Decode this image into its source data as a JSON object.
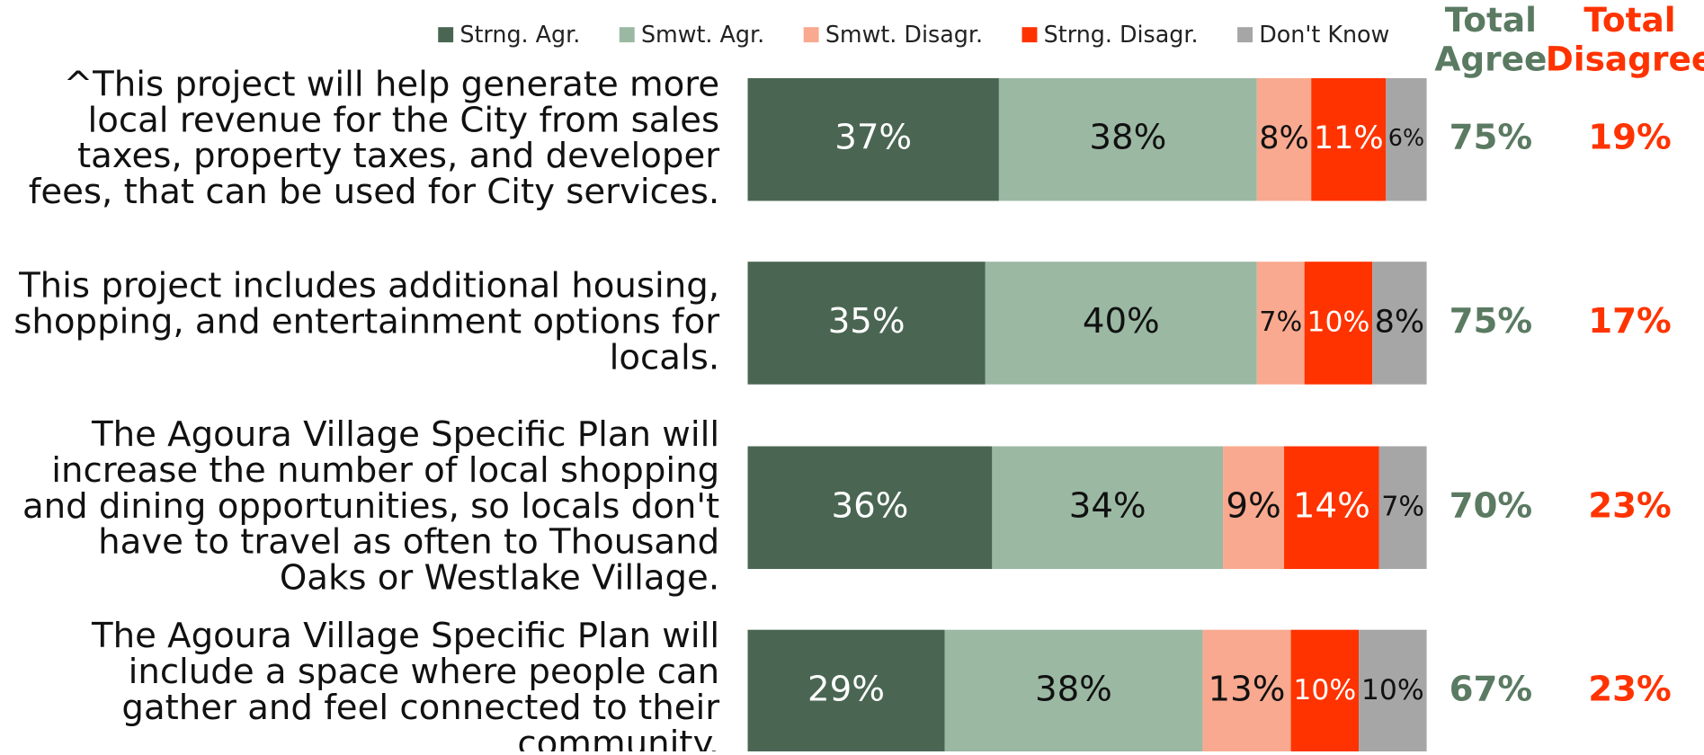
{
  "chart_data": {
    "type": "stacked_barh",
    "categories": [
      "^This project will help generate more local revenue for the City from sales taxes, property taxes, and developer fees, that can be used for City services.",
      "This project includes additional housing, shopping, and entertainment options for locals.",
      "The Agoura Village Specific Plan will increase the number of local shopping and dining opportunities, so locals don't have to travel as often to Thousand Oaks or Westlake Village.",
      "The Agoura Village Specific Plan will include a space where people can gather and feel connected to their community."
    ],
    "xlim": [
      0,
      100
    ],
    "series": [
      {
        "name": "Strng. Agr.",
        "color": "#4a6652",
        "values": [
          37,
          35,
          36,
          29
        ],
        "value_labels": [
          "37%",
          "35%",
          "36%",
          "29%"
        ]
      },
      {
        "name": "Smwt. Agr.",
        "color": "#9bb8a3",
        "values": [
          38,
          40,
          34,
          38
        ],
        "value_labels": [
          "38%",
          "40%",
          "34%",
          "38%"
        ]
      },
      {
        "name": "Smwt. Disagr.",
        "color": "#f9a98f",
        "values": [
          8,
          7,
          9,
          13
        ],
        "value_labels": [
          "8%",
          "7%",
          "9%",
          "13%"
        ]
      },
      {
        "name": "Strng. Disagr.",
        "color": "#ff3300",
        "values": [
          11,
          10,
          14,
          10
        ],
        "value_labels": [
          "11%",
          "10%",
          "14%",
          "10%"
        ]
      },
      {
        "name": "Don't Know",
        "color": "#a6a6a6",
        "values": [
          6,
          8,
          7,
          10
        ],
        "value_labels": [
          "6%",
          "8%",
          "7%",
          "10%"
        ]
      }
    ],
    "totals": [
      {
        "name": "Total Agree",
        "color": "#5a7a62",
        "values": [
          75,
          75,
          70,
          67
        ],
        "value_labels": [
          "75%",
          "75%",
          "70%",
          "67%"
        ]
      },
      {
        "name": "Total Disagree",
        "color": "#ff3300",
        "values": [
          19,
          17,
          23,
          23
        ],
        "value_labels": [
          "19%",
          "17%",
          "23%",
          "23%"
        ]
      }
    ]
  }
}
